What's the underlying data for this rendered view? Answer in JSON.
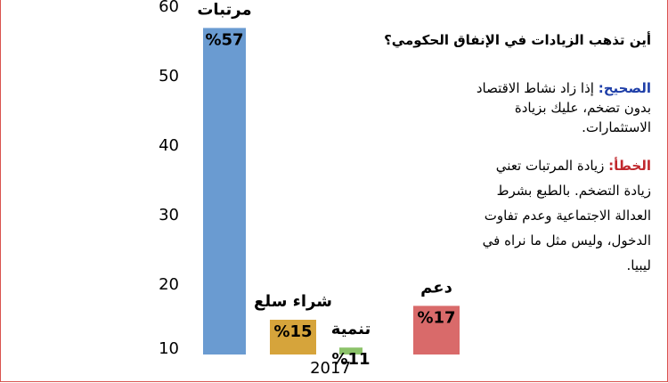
{
  "chart_data": {
    "type": "bar",
    "categories": [
      "مرتبات",
      "شراء سلع",
      "تنمية",
      "دعم"
    ],
    "values": [
      57,
      15,
      11,
      17
    ],
    "value_labels": [
      "%57",
      "%15",
      "%11",
      "%17"
    ],
    "colors": [
      "#6a9bd1",
      "#d6a43b",
      "#8cc26a",
      "#d96a6a"
    ],
    "x_label": "2017",
    "ylim": [
      10,
      60
    ],
    "yticks": [
      10,
      20,
      30,
      40,
      50,
      60
    ],
    "grid": false,
    "annotations": {
      "title": "أين تذهب الزيادات في الإنفاق الحكومي؟",
      "correct_label": "الصحيح:",
      "correct_text": "إذا زاد نشاط الاقتصاد بدون تضخم، عليك بزيادة الاستثمارات.",
      "wrong_label": "الخطأ:",
      "wrong_text": "زيادة المرتبات تعني زيادة التضخم. بالطبع بشرط العدالة الاجتماعية وعدم تفاوت الدخول، وليس مثل ما نراه في ليبيا."
    }
  }
}
